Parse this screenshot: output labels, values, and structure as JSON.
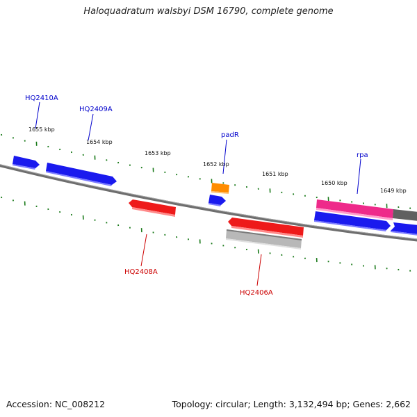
{
  "title": "Haloquadratum walsbyi DSM 16790, complete genome",
  "footer": {
    "accession": "Accession: NC_008212",
    "summary": "Topology: circular; Length: 3,132,494 bp; Genes: 2,662"
  },
  "colors": {
    "backbone": "#7a7a7a",
    "ticks": "#1a7a1a",
    "forward_gene": "#1a1aee",
    "reverse_gene": "#ee1a1a",
    "rna_gene": "#ff8c00",
    "pink_gene": "#ee2a8a",
    "gray_gene": "#b8b8b8",
    "forward_label": "#0000cc",
    "reverse_label": "#cc0000"
  },
  "ruler_labels": [
    "1655 kbp",
    "1654 kbp",
    "1653 kbp",
    "1652 kbp",
    "1651 kbp",
    "1650 kbp",
    "1649 kbp"
  ],
  "gene_labels": [
    {
      "text": "HQ2410A",
      "strand": "forward"
    },
    {
      "text": "HQ2409A",
      "strand": "forward"
    },
    {
      "text": "padR",
      "strand": "forward"
    },
    {
      "text": "rpa",
      "strand": "forward"
    },
    {
      "text": "HQ2408A",
      "strand": "reverse"
    },
    {
      "text": "HQ2406A",
      "strand": "reverse"
    }
  ]
}
